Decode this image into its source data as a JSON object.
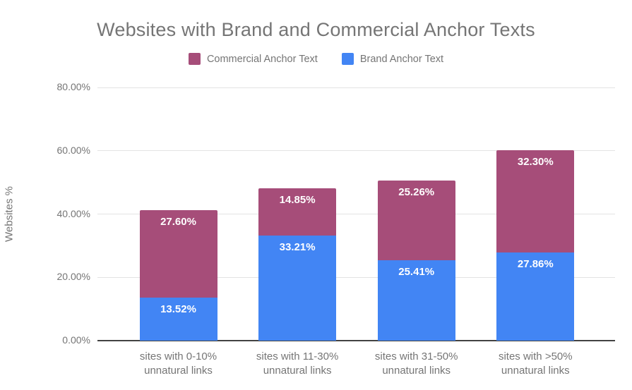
{
  "chart_data": {
    "type": "bar",
    "stacked": true,
    "title": "Websites with Brand and Commercial Anchor Texts",
    "ylabel": "Websites %",
    "xlabel": "",
    "ylim": [
      0,
      80
    ],
    "yticks": [
      0,
      20,
      40,
      60,
      80
    ],
    "ytick_labels": [
      "0.00%",
      "20.00%",
      "40.00%",
      "60.00%",
      "80.00%"
    ],
    "grid": true,
    "legend_position": "top",
    "categories": [
      [
        "sites with 0-10%",
        "unnatural links"
      ],
      [
        "sites with 11-30%",
        "unnatural links"
      ],
      [
        "sites with 31-50%",
        "unnatural links"
      ],
      [
        "sites with >50%",
        "unnatural links"
      ]
    ],
    "stack_order_bottom_to_top": [
      "Brand Anchor Text",
      "Commercial Anchor Text"
    ],
    "series": [
      {
        "name": "Commercial Anchor Text",
        "color": "#A64D79",
        "values": [
          27.6,
          14.85,
          25.26,
          32.3
        ],
        "labels": [
          "27.60%",
          "14.85%",
          "25.26%",
          "32.30%"
        ]
      },
      {
        "name": "Brand Anchor Text",
        "color": "#4285F4",
        "values": [
          13.52,
          33.21,
          25.41,
          27.86
        ],
        "labels": [
          "13.52%",
          "33.21%",
          "25.41%",
          "27.86%"
        ]
      }
    ],
    "colors": {
      "title_text": "#757575",
      "axis_text": "#757575",
      "gridline": "#e3e3e3",
      "axis_line": "#424242",
      "bar_label_text": "#ffffff",
      "background": "#ffffff"
    }
  }
}
